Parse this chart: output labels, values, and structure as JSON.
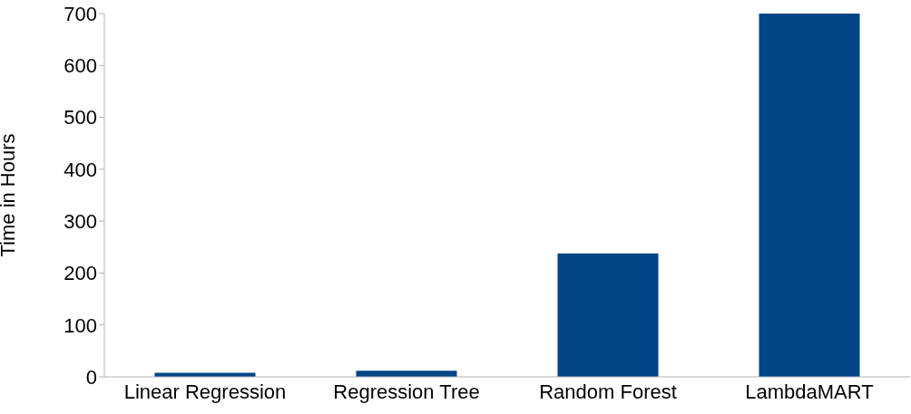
{
  "chart_data": {
    "type": "bar",
    "ylabel": "Time in Hours",
    "categories": [
      "Linear Regression",
      "Regression Tree",
      "Random Forest",
      "LambdaMART"
    ],
    "values": [
      8,
      12,
      238,
      700
    ],
    "color": "#004586",
    "ylim": [
      0,
      700
    ],
    "yticks": [
      0,
      100,
      200,
      300,
      400,
      500,
      600,
      700
    ],
    "grid": false,
    "legend": false
  }
}
